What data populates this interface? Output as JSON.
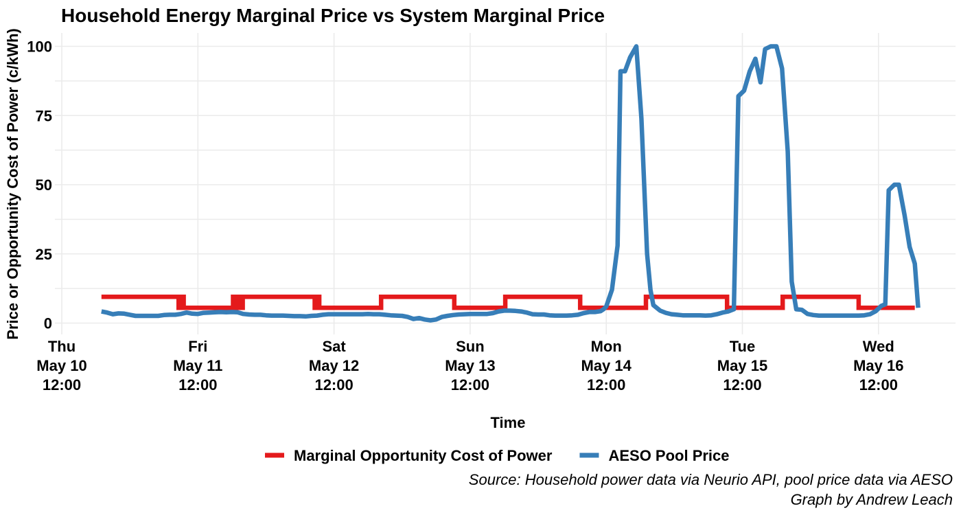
{
  "chart_data": {
    "type": "line",
    "title": "Household Energy Marginal Price vs System Marginal Price",
    "xlabel": "Time",
    "ylabel": "Price or Opportunity Cost of Power (c/kWh)",
    "ylim": [
      0,
      105
    ],
    "yticks": [
      0,
      25,
      50,
      75,
      100
    ],
    "grid": true,
    "legend_position": "bottom",
    "x_unit": "hours after Thu May 10 12:00",
    "xlim": [
      0,
      157
    ],
    "xticks": [
      {
        "x": 0,
        "label": "Thu\nMay 10\n12:00"
      },
      {
        "x": 24,
        "label": "Fri\nMay 11\n12:00"
      },
      {
        "x": 48,
        "label": "Sat\nMay 12\n12:00"
      },
      {
        "x": 72,
        "label": "Sun\nMay 13\n12:00"
      },
      {
        "x": 96,
        "label": "Mon\nMay 14\n12:00"
      },
      {
        "x": 120,
        "label": "Tue\nMay 15\n12:00"
      },
      {
        "x": 144,
        "label": "Wed\nMay 16\n12:00"
      }
    ],
    "series": [
      {
        "name": "Marginal Opportunity Cost of Power",
        "color": "#e41a1c",
        "step": true,
        "points": [
          [
            7,
            9.5
          ],
          [
            20.6,
            9.5
          ],
          [
            20.6,
            5.5
          ],
          [
            21.1,
            5.5
          ],
          [
            21.1,
            9.5
          ],
          [
            21.5,
            9.5
          ],
          [
            21.5,
            5.5
          ],
          [
            30.2,
            5.5
          ],
          [
            30.2,
            9.5
          ],
          [
            30.6,
            9.5
          ],
          [
            30.6,
            5.5
          ],
          [
            31.1,
            5.5
          ],
          [
            31.1,
            9.5
          ],
          [
            31.5,
            9.5
          ],
          [
            31.5,
            5.5
          ],
          [
            31.9,
            5.5
          ],
          [
            31.9,
            9.5
          ],
          [
            44.6,
            9.5
          ],
          [
            44.6,
            5.5
          ],
          [
            45.0,
            5.5
          ],
          [
            45.0,
            9.5
          ],
          [
            45.4,
            9.5
          ],
          [
            45.4,
            5.5
          ],
          [
            56.3,
            5.5
          ],
          [
            56.3,
            9.5
          ],
          [
            69.2,
            9.5
          ],
          [
            69.2,
            5.5
          ],
          [
            78.2,
            5.5
          ],
          [
            78.2,
            9.5
          ],
          [
            91.4,
            9.5
          ],
          [
            91.4,
            5.5
          ],
          [
            103.0,
            5.5
          ],
          [
            103.0,
            9.5
          ],
          [
            117.3,
            9.5
          ],
          [
            117.3,
            5.5
          ],
          [
            127.1,
            5.5
          ],
          [
            127.1,
            9.5
          ],
          [
            140.5,
            9.5
          ],
          [
            140.5,
            5.5
          ],
          [
            150.4,
            5.5
          ]
        ]
      },
      {
        "name": "AESO Pool Price",
        "color": "#377eb8",
        "step": false,
        "points": [
          [
            7,
            4.2
          ],
          [
            8,
            3.8
          ],
          [
            9,
            3.2
          ],
          [
            10,
            3.5
          ],
          [
            11,
            3.4
          ],
          [
            12,
            3.0
          ],
          [
            13,
            2.6
          ],
          [
            14,
            2.6
          ],
          [
            15,
            2.6
          ],
          [
            16,
            2.6
          ],
          [
            17,
            2.6
          ],
          [
            18,
            2.9
          ],
          [
            19,
            3.0
          ],
          [
            20,
            3.0
          ],
          [
            21,
            3.3
          ],
          [
            22,
            3.8
          ],
          [
            23,
            3.4
          ],
          [
            24,
            3.3
          ],
          [
            25,
            3.7
          ],
          [
            26,
            3.8
          ],
          [
            27,
            3.9
          ],
          [
            28,
            4.0
          ],
          [
            29,
            3.9
          ],
          [
            30,
            4.0
          ],
          [
            31,
            3.9
          ],
          [
            32,
            3.3
          ],
          [
            33,
            3.1
          ],
          [
            34,
            3.0
          ],
          [
            35,
            3.0
          ],
          [
            36,
            2.8
          ],
          [
            37,
            2.7
          ],
          [
            38,
            2.7
          ],
          [
            39,
            2.7
          ],
          [
            40,
            2.6
          ],
          [
            41,
            2.5
          ],
          [
            42,
            2.5
          ],
          [
            43,
            2.4
          ],
          [
            44,
            2.6
          ],
          [
            45,
            2.7
          ],
          [
            46,
            3.0
          ],
          [
            47,
            3.2
          ],
          [
            48,
            3.2
          ],
          [
            49,
            3.2
          ],
          [
            50,
            3.2
          ],
          [
            51,
            3.2
          ],
          [
            52,
            3.2
          ],
          [
            53,
            3.2
          ],
          [
            54,
            3.3
          ],
          [
            55,
            3.2
          ],
          [
            56,
            3.2
          ],
          [
            57,
            3.0
          ],
          [
            58,
            2.8
          ],
          [
            59,
            2.7
          ],
          [
            60,
            2.6
          ],
          [
            61,
            2.2
          ],
          [
            62,
            1.5
          ],
          [
            63,
            1.8
          ],
          [
            64,
            1.3
          ],
          [
            65,
            1.0
          ],
          [
            66,
            1.3
          ],
          [
            67,
            2.2
          ],
          [
            68,
            2.6
          ],
          [
            69,
            2.9
          ],
          [
            70,
            3.1
          ],
          [
            71,
            3.2
          ],
          [
            72,
            3.3
          ],
          [
            73,
            3.3
          ],
          [
            74,
            3.3
          ],
          [
            75,
            3.3
          ],
          [
            76,
            3.6
          ],
          [
            77,
            4.2
          ],
          [
            78,
            4.5
          ],
          [
            79,
            4.5
          ],
          [
            80,
            4.4
          ],
          [
            81,
            4.2
          ],
          [
            82,
            3.8
          ],
          [
            83,
            3.2
          ],
          [
            84,
            3.1
          ],
          [
            85,
            3.1
          ],
          [
            86,
            2.8
          ],
          [
            87,
            2.7
          ],
          [
            88,
            2.7
          ],
          [
            89,
            2.7
          ],
          [
            90,
            2.8
          ],
          [
            91,
            3.0
          ],
          [
            92,
            3.6
          ],
          [
            93,
            4.0
          ],
          [
            94,
            4.0
          ],
          [
            95,
            4.3
          ],
          [
            95.5,
            5.0
          ],
          [
            96,
            6.0
          ],
          [
            97,
            12
          ],
          [
            98,
            28
          ],
          [
            98.5,
            91
          ],
          [
            99.3,
            91
          ],
          [
            100.2,
            96
          ],
          [
            101.3,
            100
          ],
          [
            102.2,
            74
          ],
          [
            103.2,
            25
          ],
          [
            103.8,
            12
          ],
          [
            104.3,
            6.5
          ],
          [
            105.5,
            4.5
          ],
          [
            106.5,
            3.7
          ],
          [
            107.5,
            3.2
          ],
          [
            108.5,
            3.0
          ],
          [
            109.5,
            2.8
          ],
          [
            110.5,
            2.8
          ],
          [
            111.5,
            2.8
          ],
          [
            112.5,
            2.8
          ],
          [
            113.5,
            2.7
          ],
          [
            114.5,
            2.8
          ],
          [
            115.5,
            3.2
          ],
          [
            116.5,
            3.8
          ],
          [
            117.5,
            4.2
          ],
          [
            118.5,
            5.0
          ],
          [
            119.3,
            82
          ],
          [
            120.3,
            84
          ],
          [
            121.3,
            91
          ],
          [
            122.3,
            95.5
          ],
          [
            123.2,
            87
          ],
          [
            124.0,
            99
          ],
          [
            125.0,
            100
          ],
          [
            126.0,
            100
          ],
          [
            127.0,
            92
          ],
          [
            128.0,
            62
          ],
          [
            128.7,
            15
          ],
          [
            129.5,
            5.0
          ],
          [
            130.5,
            4.8
          ],
          [
            131.5,
            3.3
          ],
          [
            132.5,
            2.9
          ],
          [
            133.5,
            2.7
          ],
          [
            134.5,
            2.7
          ],
          [
            135.5,
            2.7
          ],
          [
            136.5,
            2.7
          ],
          [
            137.5,
            2.7
          ],
          [
            138.5,
            2.7
          ],
          [
            139.5,
            2.7
          ],
          [
            140.5,
            2.7
          ],
          [
            141.5,
            2.8
          ],
          [
            142.5,
            3.2
          ],
          [
            143.5,
            4.3
          ],
          [
            144.5,
            6.2
          ],
          [
            145.2,
            6.8
          ],
          [
            145.8,
            48
          ],
          [
            146.8,
            50
          ],
          [
            147.6,
            50
          ],
          [
            148.6,
            39
          ],
          [
            149.5,
            27.5
          ],
          [
            150.4,
            21.5
          ],
          [
            151.0,
            5.5
          ]
        ]
      }
    ],
    "caption_source": "Source: Household power data via Neurio API, pool price data via AESO",
    "caption_credit": "Graph by Andrew Leach"
  }
}
